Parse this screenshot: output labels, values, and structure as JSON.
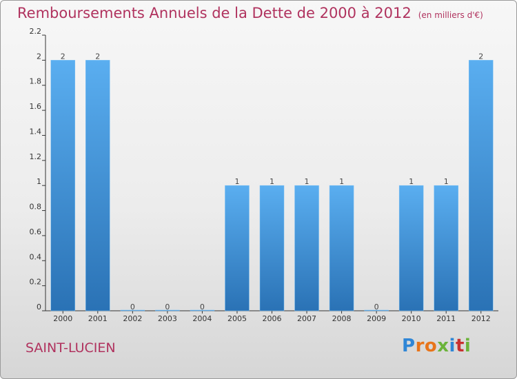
{
  "title": "Remboursements Annuels de la Dette de 2000 à 2012",
  "unit": "(en milliers d'€)",
  "commune": "SAINT-LUCIEN",
  "logo": [
    "P",
    "r",
    "o",
    "x",
    "i",
    "t",
    "i"
  ],
  "colors": {
    "bar_top": "#5aaef0",
    "bar_bottom": "#2a72b5",
    "title": "#b0325e"
  },
  "chart_data": {
    "type": "bar",
    "title": "Remboursements Annuels de la Dette de 2000 à 2012",
    "xlabel": "",
    "ylabel": "",
    "categories": [
      "2000",
      "2001",
      "2002",
      "2003",
      "2004",
      "2005",
      "2006",
      "2007",
      "2008",
      "2009",
      "2010",
      "2011",
      "2012"
    ],
    "values": [
      2,
      2,
      0,
      0,
      0,
      1,
      1,
      1,
      1,
      0,
      1,
      1,
      2
    ],
    "data_labels": [
      "2",
      "2",
      "0",
      "0",
      "0",
      "1",
      "1",
      "1",
      "1",
      "0",
      "1",
      "1",
      "2"
    ],
    "ylim": [
      0,
      2.2
    ],
    "yticks": [
      0,
      0.2,
      0.4,
      0.6,
      0.8,
      1,
      1.2,
      1.4,
      1.6,
      1.8,
      2,
      2.2
    ],
    "ytick_labels": [
      "0",
      "0.2",
      "0.4",
      "0.6",
      "0.8",
      "1",
      "1.2",
      "1.4",
      "1.6",
      "1.8",
      "2",
      "2.2"
    ],
    "grid": false
  }
}
